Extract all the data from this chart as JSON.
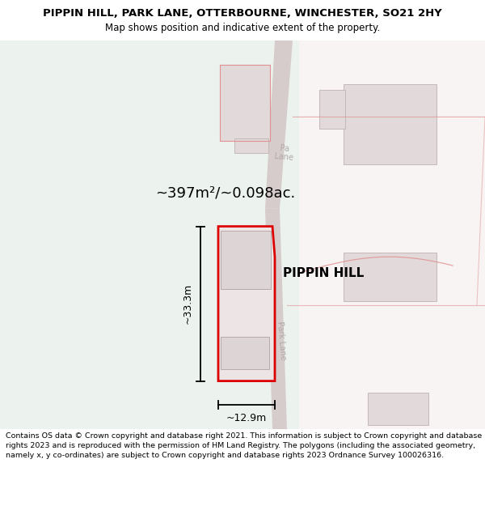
{
  "title": "PIPPIN HILL, PARK LANE, OTTERBOURNE, WINCHESTER, SO21 2HY",
  "subtitle": "Map shows position and indicative extent of the property.",
  "footer": "Contains OS data © Crown copyright and database right 2021. This information is subject to Crown copyright and database rights 2023 and is reproduced with the permission of HM Land Registry. The polygons (including the associated geometry, namely x, y co-ordinates) are subject to Crown copyright and database rights 2023 Ordnance Survey 100026316.",
  "area_label": "~397m²/~0.098ac.",
  "property_name": "PIPPIN HILL",
  "width_label": "~12.9m",
  "height_label": "~33.3m",
  "bg_left_color": "#ecf3ee",
  "bg_right_color": "#f5efef",
  "road_fill": "#d6cccc",
  "road_line_color": "#c0b4b4",
  "building_fill": "#e2dada",
  "building_stroke": "#c4b8b8",
  "red_poly_color": "#dd0000",
  "red_map_color": "#e09090",
  "road_label_color": "#b0a8a8",
  "dim_line_color": "#000000",
  "title_fontsize": 9.5,
  "subtitle_fontsize": 8.5,
  "footer_fontsize": 6.8,
  "area_fontsize": 13,
  "propname_fontsize": 11,
  "dim_fontsize": 9
}
